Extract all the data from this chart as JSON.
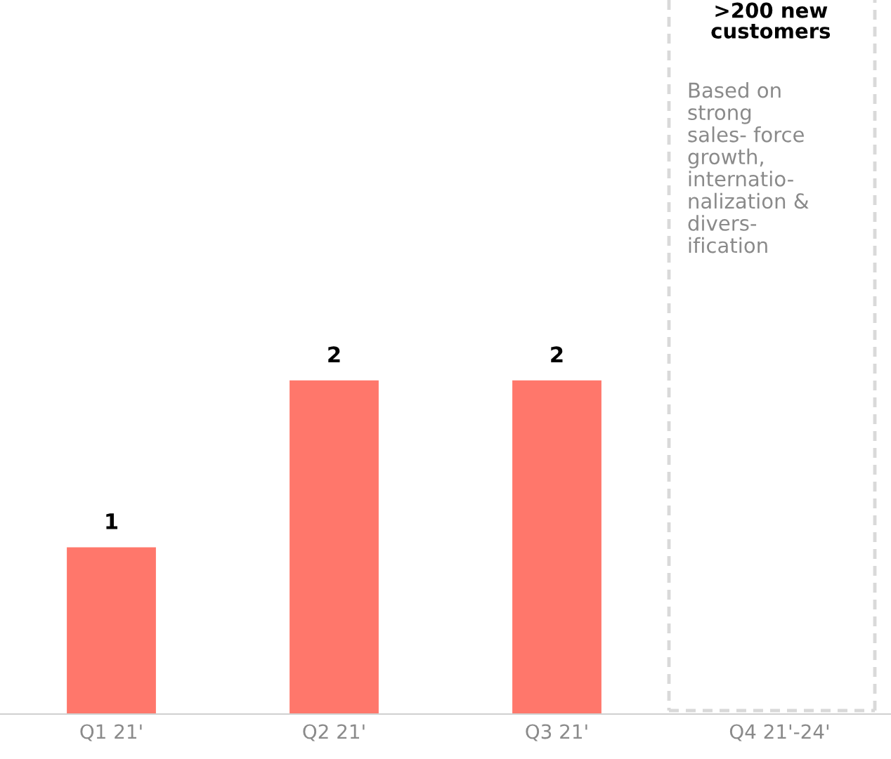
{
  "chart_data": {
    "type": "bar",
    "categories": [
      "Q1 21'",
      "Q2 21'",
      "Q3 21'",
      "Q4 21'-24'"
    ],
    "values": [
      1,
      2,
      2,
      null
    ],
    "color": "#ff776b",
    "data_labels": true,
    "grid": false,
    "legend": false,
    "annotations": [
      ">200 new\ncustomers",
      "Based on\nstrong\nsales- force\ngrowth,\ninternatio-\nnalization &\ndivers-\nification"
    ]
  }
}
